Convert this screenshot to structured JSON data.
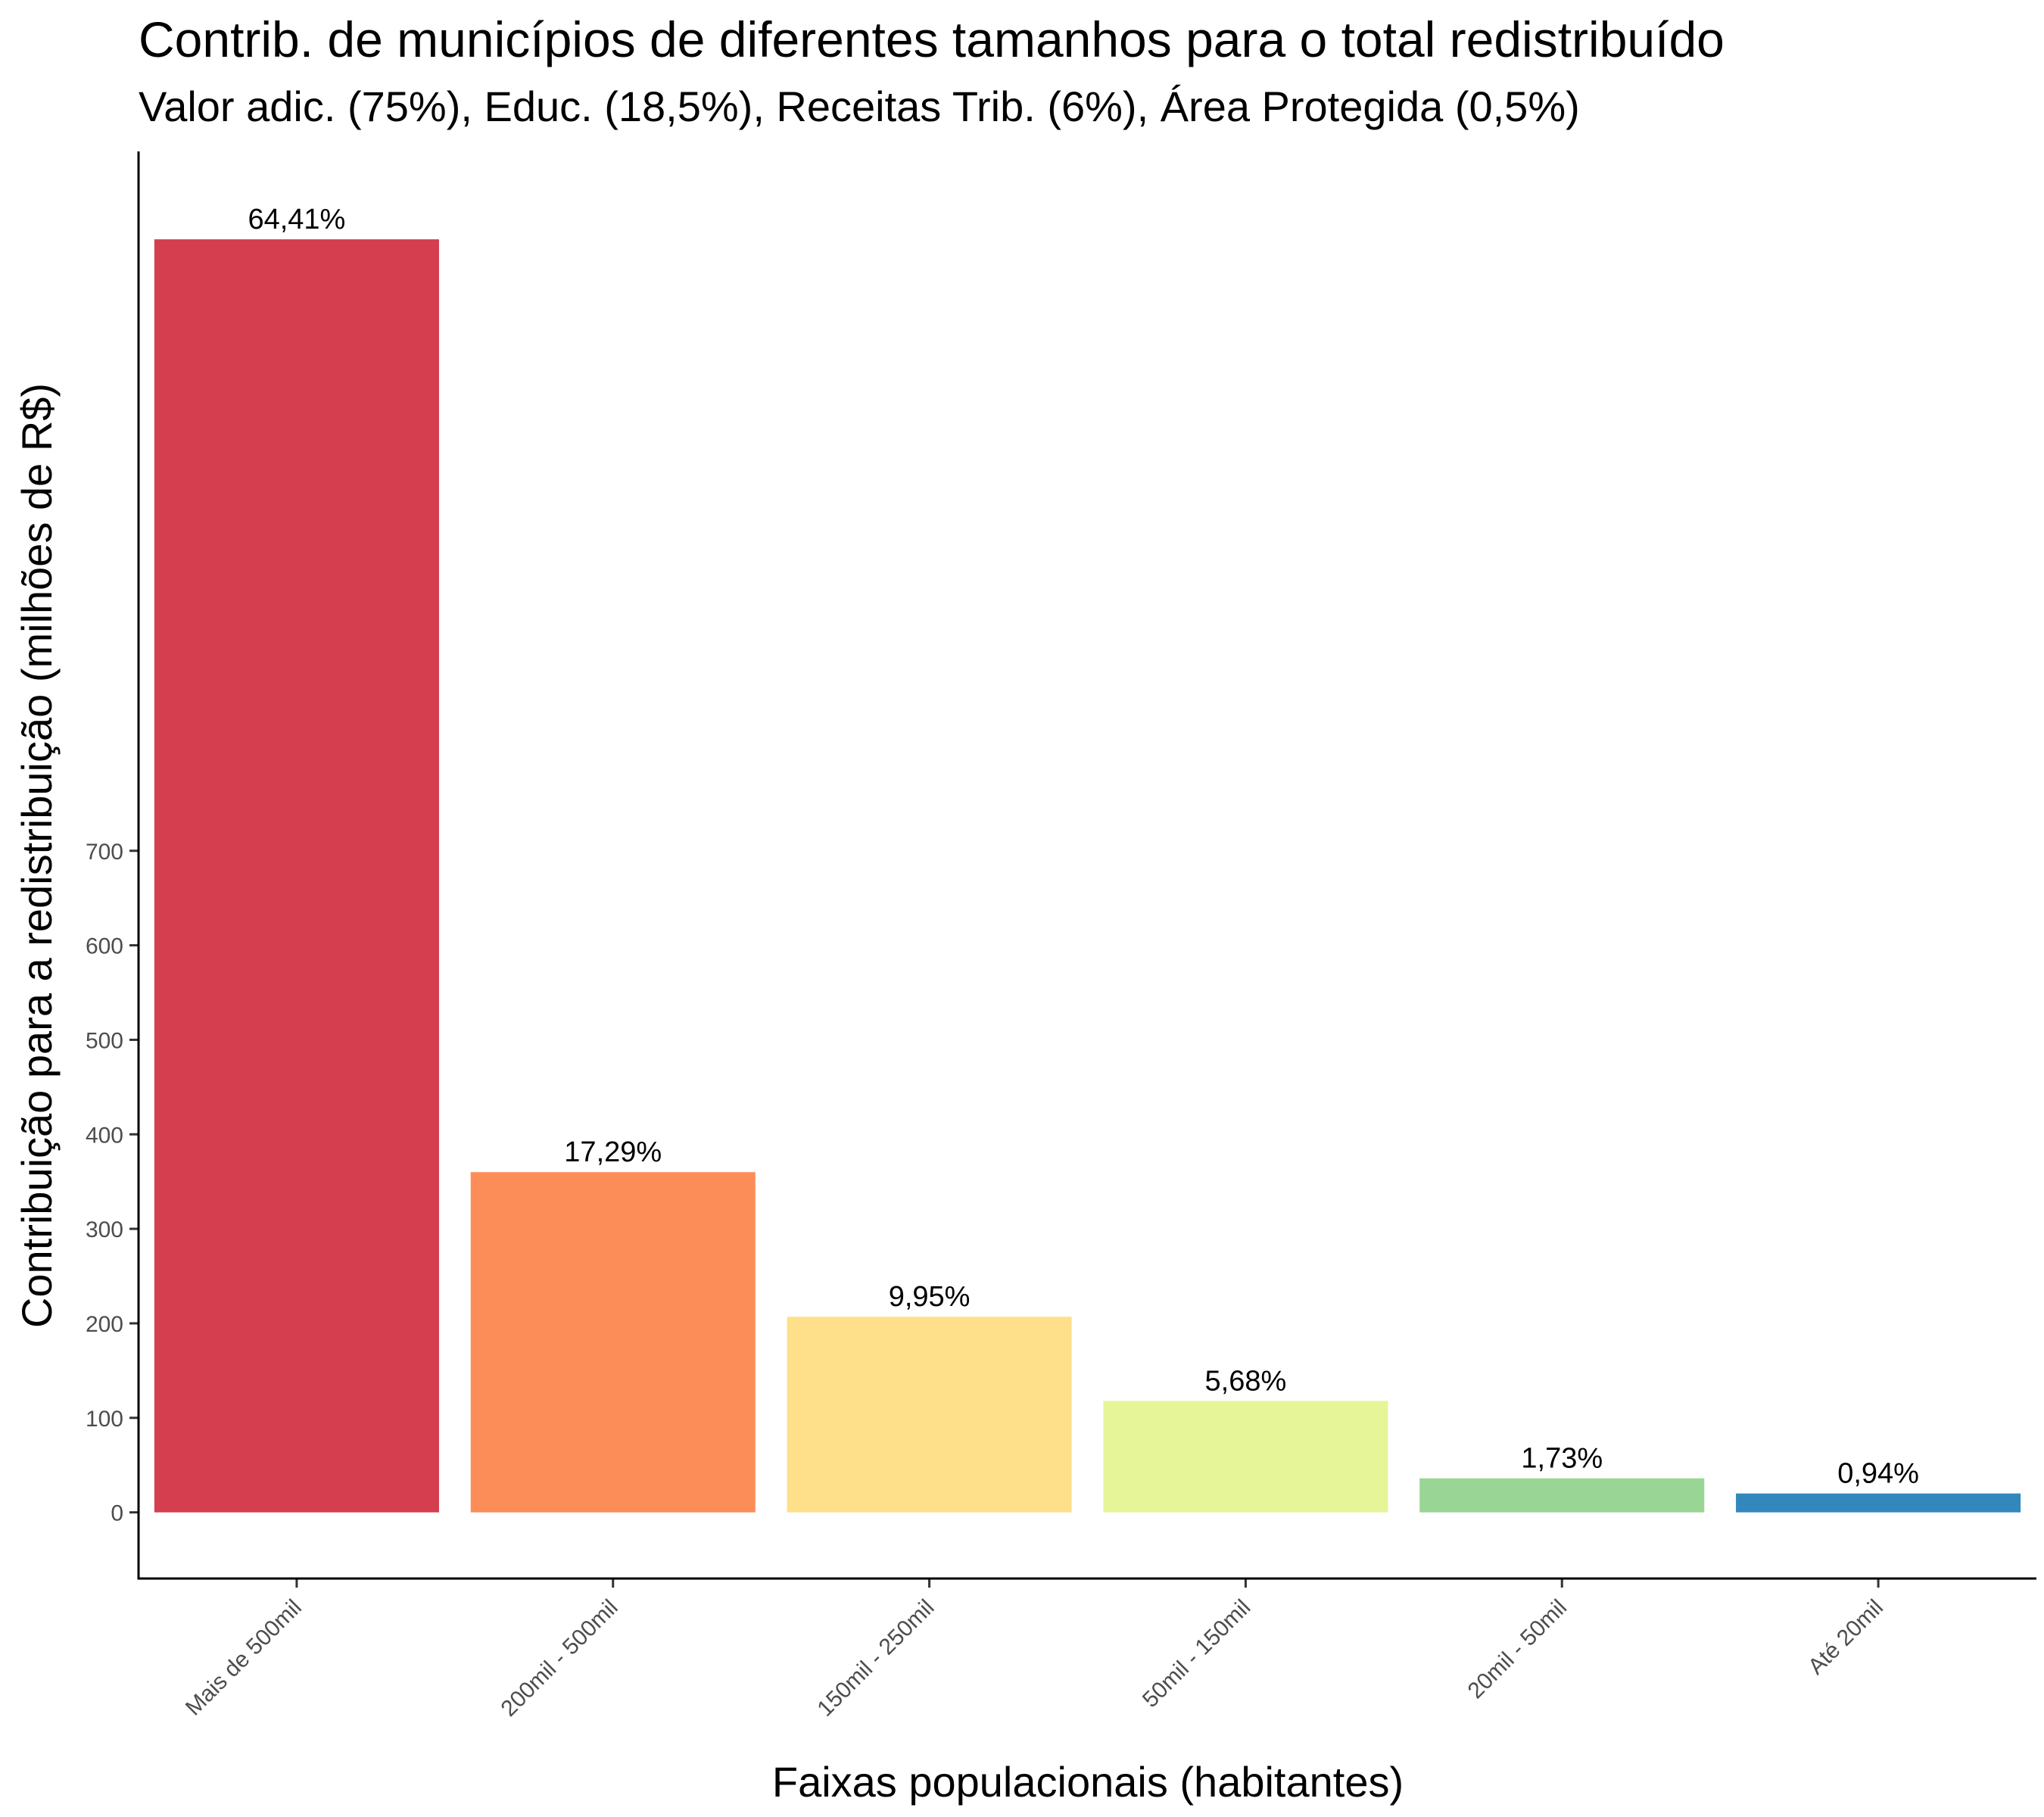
{
  "chart_data": {
    "type": "bar",
    "title": "Contrib. de municípios de diferentes tamanhos para o total redistribuído",
    "subtitle": "Valor adic. (75%), Educ. (18,5%), Receitas Trib. (6%), Área Protegida (0,5%)",
    "xlabel": "Faixas populacionais (habitantes)",
    "ylabel": "Contribuição para a redistribuição (milhões de R$)",
    "categories": [
      "Mais de 500mil",
      "200mil - 500mil",
      "150mil - 250mil",
      "50mil - 150mil",
      "20mil - 50mil",
      "Até 20mil"
    ],
    "values": [
      1347,
      360,
      207,
      118,
      36,
      20
    ],
    "labels": [
      "64,41%",
      "17,29%",
      "9,95%",
      "5,68%",
      "1,73%",
      "0,94%"
    ],
    "colors": [
      "#D53E4F",
      "#FC8D59",
      "#FEE08B",
      "#E6F598",
      "#99D594",
      "#3288BD"
    ],
    "yticks": [
      0,
      100,
      200,
      300,
      400,
      500,
      600,
      700
    ],
    "ylim": [
      -70,
      1440
    ],
    "grid": false,
    "legend": "none"
  }
}
